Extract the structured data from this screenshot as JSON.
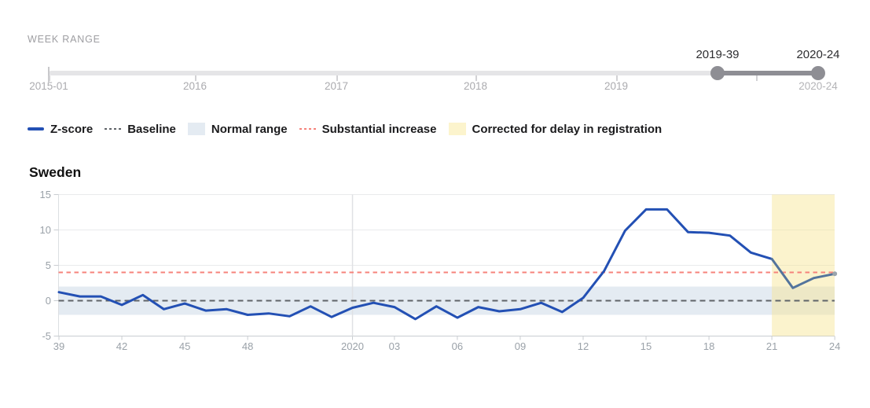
{
  "week_range": {
    "label": "WEEK RANGE",
    "start_handle_label": "2019-39",
    "end_handle_label": "2020-24",
    "end_value_below": "2020-24",
    "axis_tick_labels": [
      "2015-01",
      "2016",
      "2017",
      "2018",
      "2019"
    ]
  },
  "legend": {
    "items": [
      {
        "label": "Z-score",
        "type": "line",
        "color": "#2350b4"
      },
      {
        "label": "Baseline",
        "type": "dash",
        "color": "#5f6368"
      },
      {
        "label": "Normal range",
        "type": "box",
        "color": "#e4ebf2"
      },
      {
        "label": "Substantial increase",
        "type": "dash",
        "color": "#f6837b"
      },
      {
        "label": "Corrected for delay in registration",
        "type": "box",
        "color": "#fcf4cd"
      }
    ]
  },
  "chart_data": {
    "type": "line",
    "title": "Sweden",
    "categories": [
      "2019-39",
      "2019-40",
      "2019-41",
      "2019-42",
      "2019-43",
      "2019-44",
      "2019-45",
      "2019-46",
      "2019-47",
      "2019-48",
      "2019-49",
      "2019-50",
      "2019-51",
      "2019-52",
      "2020-01",
      "2020-02",
      "2020-03",
      "2020-04",
      "2020-05",
      "2020-06",
      "2020-07",
      "2020-08",
      "2020-09",
      "2020-10",
      "2020-11",
      "2020-12",
      "2020-13",
      "2020-14",
      "2020-15",
      "2020-16",
      "2020-17",
      "2020-18",
      "2020-19",
      "2020-20",
      "2020-21",
      "2020-22",
      "2020-23",
      "2020-24"
    ],
    "series": [
      {
        "name": "Z-score",
        "values": [
          1.2,
          0.6,
          0.6,
          -0.6,
          0.8,
          -1.2,
          -0.4,
          -1.4,
          -1.2,
          -2.0,
          -1.8,
          -2.2,
          -0.8,
          -2.3,
          -1.0,
          -0.3,
          -0.9,
          -2.6,
          -0.8,
          -2.4,
          -0.9,
          -1.5,
          -1.2,
          -0.3,
          -1.6,
          0.4,
          4.2,
          9.9,
          12.9,
          12.9,
          9.7,
          9.6,
          9.2,
          6.8,
          5.9,
          1.8,
          3.2,
          3.8
        ]
      }
    ],
    "z_score_color": "#2350b4",
    "corrected_color": "#53749c",
    "corrected_start_index": 34,
    "corrected_region": {
      "label": "Corrected for delay in registration",
      "from": "2020-21",
      "to": "2020-24",
      "fill": "rgba(246,230,148,0.47)"
    },
    "baseline": {
      "label": "Baseline",
      "value": 0,
      "color": "#5f6368"
    },
    "substantial_increase": {
      "label": "Substantial increase",
      "value": 4,
      "color": "#f6837b"
    },
    "normal_range": {
      "label": "Normal range",
      "low": -2,
      "high": 2,
      "color": "#e4ebf2"
    },
    "ylim": [
      -5,
      15
    ],
    "yticks": [
      -5,
      0,
      5,
      10,
      15
    ],
    "x_tick_labels": [
      "39",
      "42",
      "45",
      "48",
      "2020",
      "03",
      "06",
      "09",
      "12",
      "15",
      "18",
      "21",
      "24"
    ],
    "x_tick_indices": [
      0,
      3,
      6,
      9,
      14,
      16,
      19,
      22,
      25,
      28,
      31,
      34,
      37
    ],
    "year_divider_index": 14,
    "grid": "horizontal",
    "legend_position": "top"
  }
}
